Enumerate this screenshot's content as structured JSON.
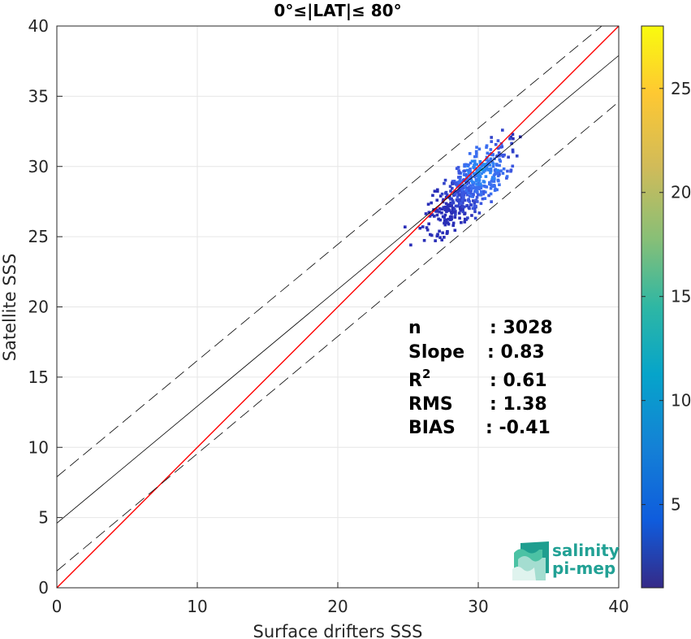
{
  "chart_data": {
    "type": "heatmap",
    "title": "0°≤|LAT|≤ 80°",
    "xlabel": "Surface drifters SSS",
    "ylabel": "Satellite SSS",
    "xlim": [
      0,
      40
    ],
    "ylim": [
      0,
      40
    ],
    "xticks": [
      "0",
      "10",
      "20",
      "30",
      "40"
    ],
    "yticks": [
      "0",
      "5",
      "10",
      "15",
      "20",
      "25",
      "30",
      "35",
      "40"
    ],
    "grid": true,
    "colorbar": {
      "range": [
        1,
        28
      ],
      "ticks": [
        "5",
        "10",
        "15",
        "20",
        "25"
      ],
      "colormap": "parula"
    },
    "lines": [
      {
        "kind": "identity",
        "color": "#ff0000",
        "style": "solid",
        "x": [
          0,
          40
        ],
        "y": [
          0,
          40
        ]
      },
      {
        "kind": "regression",
        "color": "#000000",
        "style": "solid",
        "x": [
          0,
          40
        ],
        "y": [
          4.6,
          37.9
        ]
      },
      {
        "kind": "upper-bound",
        "color": "#000000",
        "style": "dashed",
        "x": [
          0,
          40
        ],
        "y": [
          7.9,
          41.0
        ]
      },
      {
        "kind": "lower-bound",
        "color": "#000000",
        "style": "dashed",
        "x": [
          0,
          40
        ],
        "y": [
          1.2,
          34.6
        ]
      }
    ],
    "density_cloud": {
      "center": [
        29.3,
        28.6
      ],
      "x_range": [
        23.0,
        33.2
      ],
      "y_range": [
        22.4,
        33.2
      ],
      "slope": 0.83,
      "n_cells": 520,
      "peak_count": 8
    },
    "stats": [
      {
        "label": "n",
        "value": ": 3028"
      },
      {
        "label": "Slope",
        "value": ": 0.83"
      },
      {
        "label": "R",
        "sup": "2",
        "value": ": 0.61"
      },
      {
        "label": "RMS",
        "value": ": 1.38"
      },
      {
        "label": "BIAS",
        "value": ": -0.41"
      }
    ]
  },
  "logo": {
    "line1": "salinity",
    "line2": "pi-mep"
  }
}
